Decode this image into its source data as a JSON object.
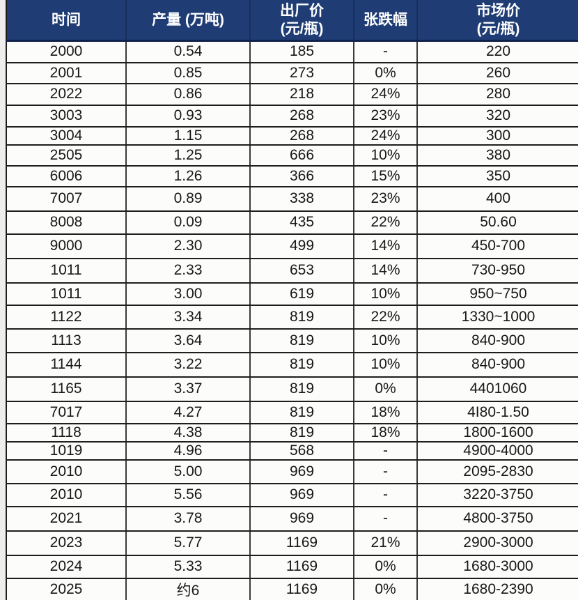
{
  "chart_data": {
    "type": "table",
    "columns": [
      {
        "key": "time",
        "label": "时间",
        "sublabel": ""
      },
      {
        "key": "production",
        "label": "产量 (万吨)",
        "sublabel": ""
      },
      {
        "key": "factory_price",
        "label": "出厂价",
        "sublabel": "(元/瓶)"
      },
      {
        "key": "change",
        "label": "张跌幅",
        "sublabel": ""
      },
      {
        "key": "market_price",
        "label": "市场价",
        "sublabel": "(元/瓶)"
      }
    ],
    "rows": [
      [
        "2000",
        "0.54",
        "185",
        "-",
        "220"
      ],
      [
        "2001",
        "0.85",
        "273",
        "0%",
        "260"
      ],
      [
        "2022",
        "0.86",
        "218",
        "24%",
        "280"
      ],
      [
        "3003",
        "0.93",
        "268",
        "23%",
        "320"
      ],
      [
        "3004",
        "1.15",
        "268",
        "24%",
        "300"
      ],
      [
        "2505",
        "1.25",
        "666",
        "10%",
        "380"
      ],
      [
        "6006",
        "1.26",
        "366",
        "15%",
        "350"
      ],
      [
        "7007",
        "0.89",
        "338",
        "23%",
        "400"
      ],
      [
        "8008",
        "0.09",
        "435",
        "22%",
        "50.60"
      ],
      [
        "9000",
        "2.30",
        "499",
        "14%",
        "450-700"
      ],
      [
        "1011",
        "2.33",
        "653",
        "14%",
        "730-950"
      ],
      [
        "1011",
        "3.00",
        "619",
        "10%",
        "950~750"
      ],
      [
        "1122",
        "3.34",
        "819",
        "22%",
        "1330~1000"
      ],
      [
        "1113",
        "3.64",
        "819",
        "10%",
        "840-900"
      ],
      [
        "1144",
        "3.22",
        "819",
        "10%",
        "840-900"
      ],
      [
        "1165",
        "3.37",
        "819",
        "0%",
        "4401060"
      ],
      [
        "7017",
        "4.27",
        "819",
        "18%",
        "4I80-1.50"
      ],
      [
        "1118",
        "4.38",
        "819",
        "18%",
        "1800-1600"
      ],
      [
        "1019",
        "4.96",
        "568",
        "-",
        "4900-4000"
      ],
      [
        "2010",
        "5.00",
        "969",
        "-",
        "2095-2830"
      ],
      [
        "2010",
        "5.56",
        "969",
        "-",
        "3220-3750"
      ],
      [
        "2021",
        "3.78",
        "969",
        "-",
        "4800-3750"
      ],
      [
        "2023",
        "5.77",
        "1169",
        "21%",
        "2900-3000"
      ],
      [
        "2024",
        "5.33",
        "1169",
        "0%",
        "1680-3000"
      ],
      [
        "2025",
        "约6",
        "1169",
        "0%",
        "1680-2390"
      ]
    ]
  },
  "colors": {
    "header_bg": "#1f3d74",
    "header_text": "#ffffff",
    "border": "#1e1e1e",
    "cell_bg": "#fcfcfb",
    "cell_text": "#171717",
    "page_bg": "#efeeec"
  }
}
